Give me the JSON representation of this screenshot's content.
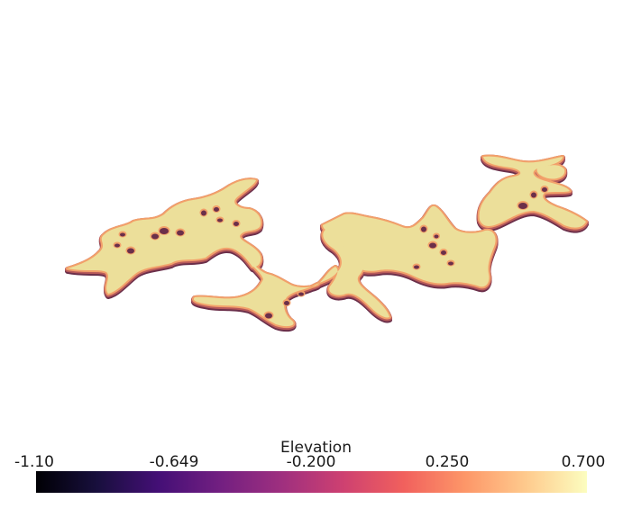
{
  "scalar_bar": {
    "title": "Elevation",
    "ticks": [
      "-1.10",
      "-0.649",
      "-0.200",
      "0.250",
      "0.700"
    ],
    "range": [
      -1.1,
      0.7
    ],
    "colormap": "magma",
    "stops": [
      "#000004",
      "#180f3d",
      "#440f76",
      "#721f81",
      "#9e2f7f",
      "#cd4071",
      "#f1605d",
      "#fd9668",
      "#feca8d",
      "#fcfdbf"
    ]
  },
  "surface": {
    "top_color": "#ecdf9a",
    "rim_color": "#f2a06a",
    "edge_color": "#b85a5a",
    "side_color": "#6b2f4a"
  }
}
